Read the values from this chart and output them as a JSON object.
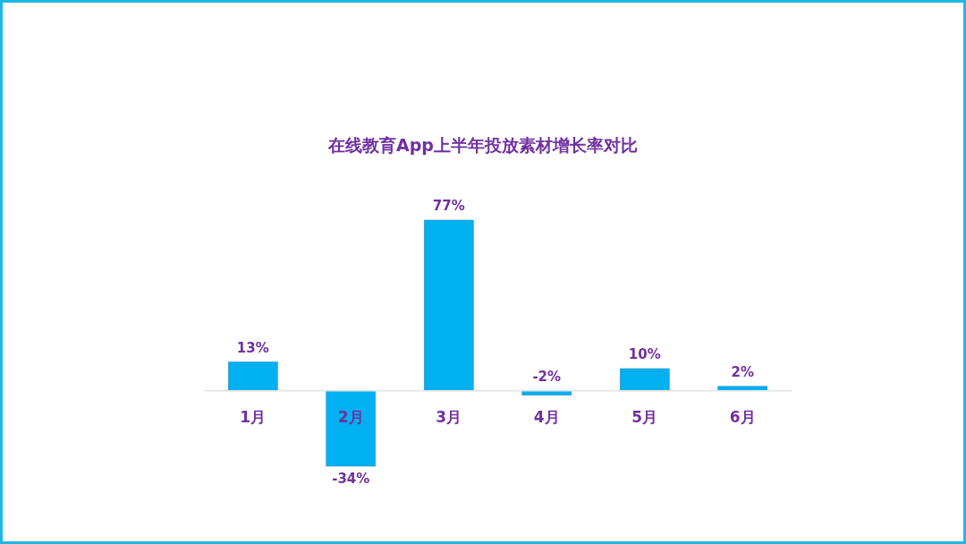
{
  "chart_data": {
    "type": "bar",
    "title": "在线教育App上半年投放素材增长率对比",
    "categories": [
      "1月",
      "2月",
      "3月",
      "4月",
      "5月",
      "6月"
    ],
    "values": [
      13,
      -34,
      77,
      -2,
      10,
      2
    ],
    "value_labels": [
      "13%",
      "-34%",
      "77%",
      "-2%",
      "10%",
      "2%"
    ],
    "color": "#00b0f0"
  }
}
